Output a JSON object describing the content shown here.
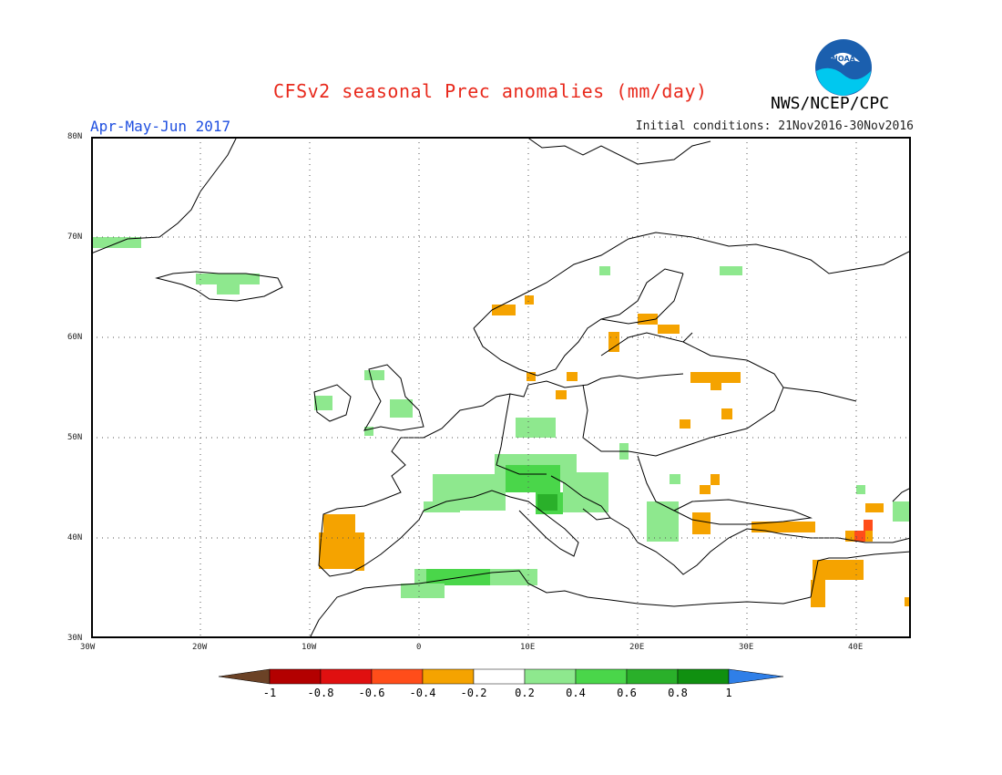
{
  "header": {
    "title": "CFSv2 seasonal Prec anomalies (mm/day)",
    "agency": "NWS/NCEP/CPC",
    "period": "Apr-May-Jun 2017",
    "initial_conditions": "Initial conditions: 21Nov2016-30Nov2016",
    "logo_text": "NOAA"
  },
  "axes": {
    "lon_labels": [
      "30W",
      "20W",
      "10W",
      "0",
      "10E",
      "20E",
      "30E",
      "40E"
    ],
    "lat_labels": [
      "80N",
      "70N",
      "60N",
      "50N",
      "40N",
      "30N"
    ],
    "lon_range": [
      -30,
      45
    ],
    "lat_range": [
      30,
      80
    ]
  },
  "legend": {
    "tick_labels": [
      "-1",
      "-0.8",
      "-0.6",
      "-0.4",
      "-0.2",
      "0.2",
      "0.4",
      "0.6",
      "0.8",
      "1"
    ],
    "colors": [
      "#6b4226",
      "#b30000",
      "#e01010",
      "#ff4d1a",
      "#f5a300",
      "#ffffff",
      "#8ee88e",
      "#4ad64a",
      "#2ab02a",
      "#109010",
      "#2f7fe8"
    ]
  },
  "colors": {
    "title": "#e8291c",
    "period": "#1f4fe0",
    "land_outline": "#000000",
    "noaa_blue": "#1b5fae",
    "noaa_cyan": "#00c8ef"
  }
}
